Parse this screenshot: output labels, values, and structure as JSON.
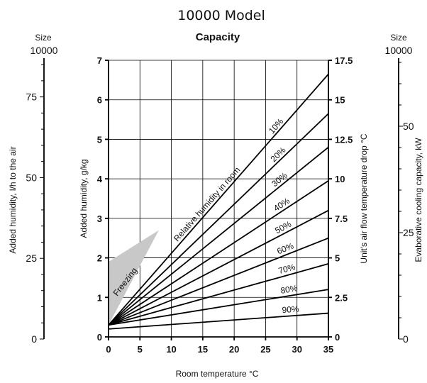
{
  "chart_data": {
    "type": "line",
    "title": "10000 Model",
    "subtitle": "Capacity",
    "xlabel": "Room temperature °C",
    "ylabel": "Added humidity, g/kg",
    "y2label": "Unit's air flow temperature drop °C",
    "xlim": [
      0,
      35
    ],
    "ylim": [
      0,
      7
    ],
    "y2lim": [
      0,
      17.5
    ],
    "xticks": [
      "0",
      "5",
      "10",
      "15",
      "20",
      "25",
      "30",
      "35"
    ],
    "yticks": [
      "0",
      "1",
      "2",
      "3",
      "4",
      "5",
      "6",
      "7"
    ],
    "y2ticks": [
      "0",
      "2.5",
      "5",
      "7.5",
      "10",
      "12.5",
      "15",
      "17.5"
    ],
    "grid": true,
    "annotation": "Relative humidity in room",
    "freezing_label": "Freezing",
    "freezing_region": [
      [
        0,
        0.3
      ],
      [
        0,
        1.9
      ],
      [
        8,
        2.7
      ]
    ],
    "series": [
      {
        "name": "10%",
        "x": [
          0,
          35
        ],
        "y": [
          0.3,
          6.65
        ]
      },
      {
        "name": "20%",
        "x": [
          0,
          35
        ],
        "y": [
          0.3,
          5.65
        ]
      },
      {
        "name": "30%",
        "x": [
          0,
          35
        ],
        "y": [
          0.3,
          4.8
        ]
      },
      {
        "name": "40%",
        "x": [
          0,
          35
        ],
        "y": [
          0.3,
          3.95
        ]
      },
      {
        "name": "50%",
        "x": [
          0,
          35
        ],
        "y": [
          0.3,
          3.2
        ]
      },
      {
        "name": "60%",
        "x": [
          0,
          35
        ],
        "y": [
          0.3,
          2.5
        ]
      },
      {
        "name": "70%",
        "x": [
          0,
          35
        ],
        "y": [
          0.3,
          1.85
        ]
      },
      {
        "name": "80%",
        "x": [
          0,
          35
        ],
        "y": [
          0.3,
          1.2
        ]
      },
      {
        "name": "90%",
        "x": [
          0,
          35
        ],
        "y": [
          0.2,
          0.6
        ]
      }
    ],
    "side_scales": [
      {
        "size_label": "Size",
        "size_value": "10000",
        "label": "Added humidity, l/h to the air",
        "ticks": [
          "0",
          "25",
          "50",
          "75"
        ]
      },
      {
        "size_label": "Size",
        "size_value": "10000",
        "label": "Evaborative cooling capacity, kW",
        "ticks": [
          "0",
          "25",
          "50"
        ]
      }
    ]
  }
}
